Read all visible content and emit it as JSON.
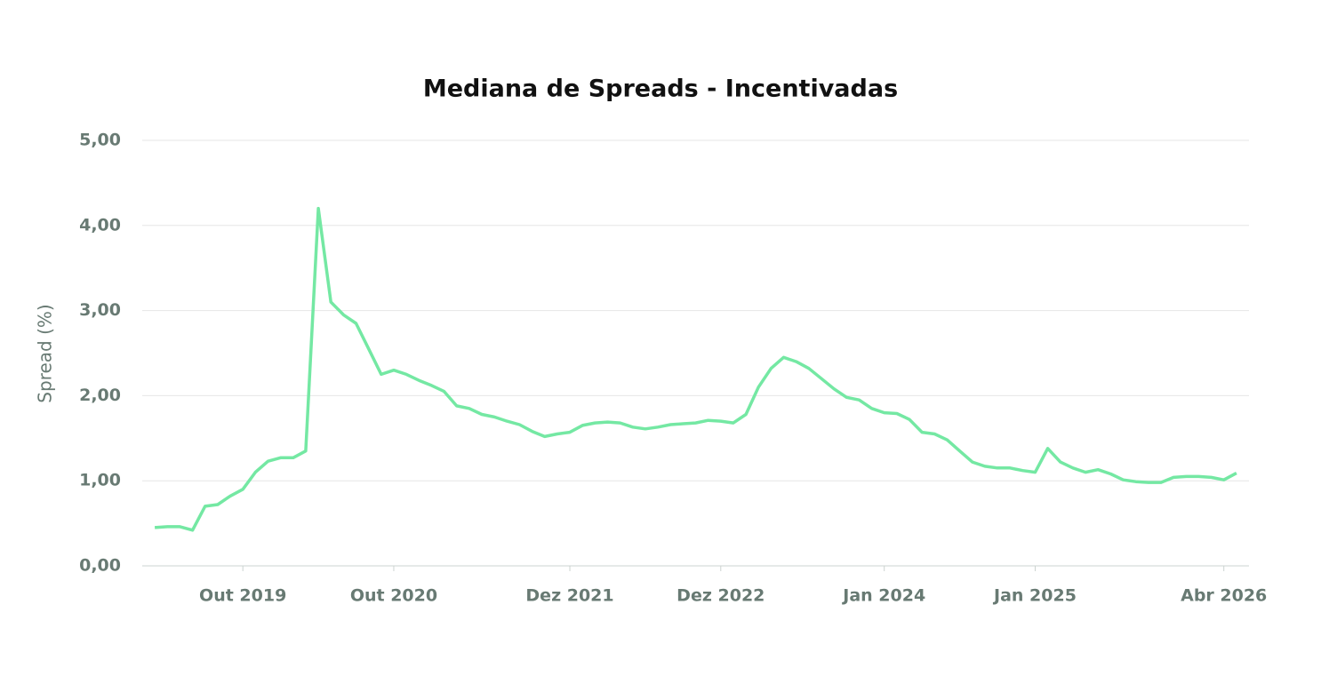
{
  "chart_data": {
    "type": "line",
    "title": "Mediana de Spreads - Incentivadas",
    "y_label": "Spread (%)",
    "x": [
      "2019-03",
      "2019-04",
      "2019-05",
      "2019-06",
      "2019-07",
      "2019-08",
      "2019-09",
      "2019-10",
      "2019-11",
      "2019-12",
      "2020-01",
      "2020-02",
      "2020-03",
      "2020-04",
      "2020-05",
      "2020-06",
      "2020-07",
      "2020-08",
      "2020-09",
      "2020-10",
      "2020-11",
      "2020-12",
      "2021-01",
      "2021-02",
      "2021-03",
      "2021-04",
      "2021-05",
      "2021-06",
      "2021-07",
      "2021-08",
      "2021-09",
      "2021-10",
      "2021-11",
      "2021-12",
      "2022-01",
      "2022-02",
      "2022-03",
      "2022-04",
      "2022-05",
      "2022-06",
      "2022-07",
      "2022-08",
      "2022-09",
      "2022-10",
      "2022-11",
      "2022-12",
      "2023-01",
      "2023-02",
      "2023-03",
      "2023-04",
      "2023-05",
      "2023-06",
      "2023-07",
      "2023-08",
      "2023-09",
      "2023-10",
      "2023-11",
      "2023-12",
      "2024-01",
      "2024-02",
      "2024-03",
      "2024-04",
      "2024-05",
      "2024-06",
      "2024-07",
      "2024-08",
      "2024-09",
      "2024-10",
      "2024-11",
      "2024-12",
      "2025-01",
      "2025-02",
      "2025-03",
      "2025-04",
      "2025-05",
      "2025-06",
      "2025-07",
      "2025-08",
      "2025-09",
      "2025-10",
      "2025-11",
      "2025-12",
      "2026-01",
      "2026-02",
      "2026-03",
      "2026-04",
      "2026-05"
    ],
    "series": [
      {
        "name": "Spread",
        "color": "#74e8a3",
        "values": [
          0.45,
          0.46,
          0.46,
          0.42,
          0.7,
          0.72,
          0.82,
          0.9,
          1.1,
          1.23,
          1.27,
          1.27,
          1.35,
          4.2,
          3.1,
          2.95,
          2.85,
          2.55,
          2.25,
          2.3,
          2.25,
          2.18,
          2.12,
          2.05,
          1.88,
          1.85,
          1.78,
          1.75,
          1.7,
          1.66,
          1.58,
          1.52,
          1.55,
          1.57,
          1.65,
          1.68,
          1.69,
          1.68,
          1.63,
          1.61,
          1.63,
          1.66,
          1.67,
          1.68,
          1.71,
          1.7,
          1.68,
          1.78,
          2.1,
          2.32,
          2.45,
          2.4,
          2.32,
          2.2,
          2.08,
          1.98,
          1.95,
          1.85,
          1.8,
          1.79,
          1.72,
          1.57,
          1.55,
          1.48,
          1.35,
          1.22,
          1.17,
          1.15,
          1.15,
          1.12,
          1.1,
          1.38,
          1.22,
          1.15,
          1.1,
          1.13,
          1.08,
          1.01,
          0.99,
          0.98,
          0.98,
          1.04,
          1.05,
          1.05,
          1.04,
          1.01,
          1.09
        ]
      }
    ],
    "xlim": [
      "2019-02",
      "2026-06"
    ],
    "xticks": [
      {
        "value": "2019-10",
        "label": "Out 2019"
      },
      {
        "value": "2020-10",
        "label": "Out 2020"
      },
      {
        "value": "2021-12",
        "label": "Dez 2021"
      },
      {
        "value": "2022-12",
        "label": "Dez 2022"
      },
      {
        "value": "2024-01",
        "label": "Jan 2024"
      },
      {
        "value": "2025-01",
        "label": "Jan 2025"
      },
      {
        "value": "2026-04",
        "label": "Abr 2026"
      }
    ],
    "ylim": [
      0,
      5
    ],
    "yticks": [
      {
        "value": 0,
        "label": "0,00"
      },
      {
        "value": 1,
        "label": "1,00"
      },
      {
        "value": 2,
        "label": "2,00"
      },
      {
        "value": 3,
        "label": "3,00"
      },
      {
        "value": 4,
        "label": "4,00"
      },
      {
        "value": 5,
        "label": "5,00"
      }
    ],
    "grid": true
  }
}
